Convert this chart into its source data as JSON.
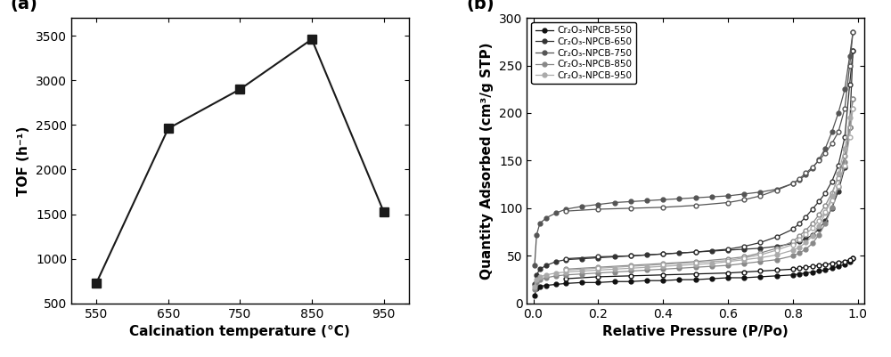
{
  "panel_a": {
    "x": [
      550,
      650,
      750,
      850,
      950
    ],
    "y": [
      730,
      2460,
      2900,
      3460,
      1530
    ],
    "xlabel": "Calcination temperature (°C)",
    "ylabel": "TOF (h⁻¹)",
    "ylim": [
      500,
      3700
    ],
    "xlim": [
      515,
      985
    ],
    "yticks": [
      500,
      1000,
      1500,
      2000,
      2500,
      3000,
      3500
    ],
    "xticks": [
      550,
      650,
      750,
      850,
      950
    ],
    "label": "(a)",
    "color": "#1a1a1a",
    "marker": "s",
    "markersize": 7
  },
  "panel_b": {
    "xlabel": "Relative Pressure (P/Po)",
    "ylabel": "Quantity Adsorbed (cm³/g STP)",
    "ylim": [
      0,
      300
    ],
    "xlim": [
      -0.02,
      1.02
    ],
    "yticks": [
      0,
      50,
      100,
      150,
      200,
      250,
      300
    ],
    "xticks": [
      0.0,
      0.2,
      0.4,
      0.6,
      0.8,
      1.0
    ],
    "label": "(b)",
    "gray_levels": [
      "#111111",
      "#333333",
      "#555555",
      "#888888",
      "#aaaaaa"
    ],
    "series": [
      {
        "name": "Cr₂O₃-NPCB-550",
        "adsorption_x": [
          0.004,
          0.01,
          0.02,
          0.04,
          0.07,
          0.1,
          0.15,
          0.2,
          0.25,
          0.3,
          0.35,
          0.4,
          0.45,
          0.5,
          0.55,
          0.6,
          0.65,
          0.7,
          0.75,
          0.8,
          0.82,
          0.84,
          0.86,
          0.88,
          0.9,
          0.92,
          0.94,
          0.96,
          0.975,
          0.985
        ],
        "adsorption_y": [
          8,
          16,
          18,
          19,
          20,
          21,
          22,
          22,
          23,
          23,
          24,
          24,
          25,
          25,
          26,
          27,
          27,
          28,
          29,
          30,
          31,
          32,
          33,
          34,
          35,
          37,
          39,
          41,
          44,
          48
        ],
        "desorption_x": [
          0.985,
          0.975,
          0.96,
          0.94,
          0.92,
          0.9,
          0.88,
          0.86,
          0.84,
          0.82,
          0.8,
          0.75,
          0.7,
          0.65,
          0.6,
          0.5,
          0.4,
          0.3,
          0.2,
          0.1
        ],
        "desorption_y": [
          48,
          46,
          44,
          43,
          42,
          41,
          40,
          39,
          38,
          37,
          36,
          35,
          34,
          33,
          32,
          31,
          30,
          29,
          28,
          26
        ]
      },
      {
        "name": "Cr₂O₃-NPCB-650",
        "adsorption_x": [
          0.004,
          0.01,
          0.02,
          0.04,
          0.07,
          0.1,
          0.15,
          0.2,
          0.25,
          0.3,
          0.35,
          0.4,
          0.45,
          0.5,
          0.55,
          0.6,
          0.65,
          0.7,
          0.75,
          0.8,
          0.82,
          0.84,
          0.86,
          0.88,
          0.9,
          0.92,
          0.94,
          0.96,
          0.975,
          0.985
        ],
        "adsorption_y": [
          20,
          30,
          36,
          40,
          44,
          46,
          47,
          48,
          49,
          50,
          51,
          52,
          53,
          54,
          55,
          56,
          57,
          58,
          60,
          63,
          65,
          68,
          72,
          78,
          87,
          100,
          118,
          143,
          185,
          265
        ],
        "desorption_x": [
          0.985,
          0.975,
          0.96,
          0.94,
          0.92,
          0.9,
          0.88,
          0.86,
          0.84,
          0.82,
          0.8,
          0.75,
          0.7,
          0.65,
          0.6,
          0.5,
          0.4,
          0.3,
          0.2,
          0.1
        ],
        "desorption_y": [
          265,
          230,
          175,
          145,
          128,
          116,
          107,
          99,
          91,
          84,
          78,
          70,
          64,
          60,
          57,
          54,
          52,
          50,
          49,
          47
        ]
      },
      {
        "name": "Cr₂O₃-NPCB-750",
        "adsorption_x": [
          0.004,
          0.01,
          0.02,
          0.04,
          0.07,
          0.1,
          0.15,
          0.2,
          0.25,
          0.3,
          0.35,
          0.4,
          0.45,
          0.5,
          0.55,
          0.6,
          0.65,
          0.7,
          0.75,
          0.8,
          0.82,
          0.84,
          0.86,
          0.88,
          0.9,
          0.92,
          0.94,
          0.96,
          0.975,
          0.985
        ],
        "adsorption_y": [
          40,
          72,
          84,
          90,
          95,
          99,
          102,
          104,
          106,
          107,
          108,
          109,
          110,
          111,
          112,
          113,
          115,
          117,
          120,
          126,
          130,
          135,
          142,
          151,
          163,
          180,
          200,
          225,
          260,
          285
        ],
        "desorption_x": [
          0.985,
          0.975,
          0.96,
          0.94,
          0.92,
          0.9,
          0.88,
          0.86,
          0.84,
          0.82,
          0.8,
          0.75,
          0.7,
          0.65,
          0.6,
          0.5,
          0.4,
          0.3,
          0.2,
          0.1
        ],
        "desorption_y": [
          285,
          250,
          205,
          180,
          168,
          158,
          150,
          143,
          137,
          131,
          126,
          119,
          113,
          109,
          106,
          103,
          101,
          100,
          99,
          97
        ]
      },
      {
        "name": "Cr₂O₃-NPCB-850",
        "adsorption_x": [
          0.004,
          0.01,
          0.02,
          0.04,
          0.07,
          0.1,
          0.15,
          0.2,
          0.25,
          0.3,
          0.35,
          0.4,
          0.45,
          0.5,
          0.55,
          0.6,
          0.65,
          0.7,
          0.75,
          0.8,
          0.82,
          0.84,
          0.86,
          0.88,
          0.9,
          0.92,
          0.94,
          0.96,
          0.975,
          0.985
        ],
        "adsorption_y": [
          15,
          22,
          25,
          27,
          29,
          30,
          31,
          32,
          33,
          34,
          35,
          36,
          37,
          38,
          39,
          40,
          42,
          44,
          46,
          50,
          53,
          57,
          63,
          72,
          84,
          101,
          122,
          149,
          185,
          215
        ],
        "desorption_x": [
          0.985,
          0.975,
          0.96,
          0.94,
          0.92,
          0.9,
          0.88,
          0.86,
          0.84,
          0.82,
          0.8,
          0.75,
          0.7,
          0.65,
          0.6,
          0.5,
          0.4,
          0.3,
          0.2,
          0.1
        ],
        "desorption_y": [
          215,
          185,
          155,
          132,
          116,
          103,
          93,
          84,
          77,
          71,
          65,
          58,
          53,
          49,
          47,
          44,
          42,
          40,
          38,
          36
        ]
      },
      {
        "name": "Cr₂O₃-NPCB-950",
        "adsorption_x": [
          0.004,
          0.01,
          0.02,
          0.04,
          0.07,
          0.1,
          0.15,
          0.2,
          0.25,
          0.3,
          0.35,
          0.4,
          0.45,
          0.5,
          0.55,
          0.6,
          0.65,
          0.7,
          0.75,
          0.8,
          0.82,
          0.84,
          0.86,
          0.88,
          0.9,
          0.92,
          0.94,
          0.96,
          0.975,
          0.985
        ],
        "adsorption_y": [
          18,
          25,
          28,
          30,
          32,
          33,
          34,
          35,
          36,
          37,
          38,
          39,
          40,
          41,
          42,
          44,
          46,
          48,
          51,
          56,
          59,
          64,
          71,
          81,
          95,
          113,
          136,
          163,
          195,
          205
        ],
        "desorption_x": [
          0.985,
          0.975,
          0.96,
          0.94,
          0.92,
          0.9,
          0.88,
          0.86,
          0.84,
          0.82,
          0.8,
          0.75,
          0.7,
          0.65,
          0.6,
          0.5,
          0.4,
          0.3,
          0.2,
          0.1
        ],
        "desorption_y": [
          205,
          175,
          145,
          123,
          108,
          96,
          87,
          79,
          73,
          67,
          62,
          56,
          51,
          48,
          45,
          43,
          41,
          39,
          37,
          35
        ]
      }
    ]
  }
}
